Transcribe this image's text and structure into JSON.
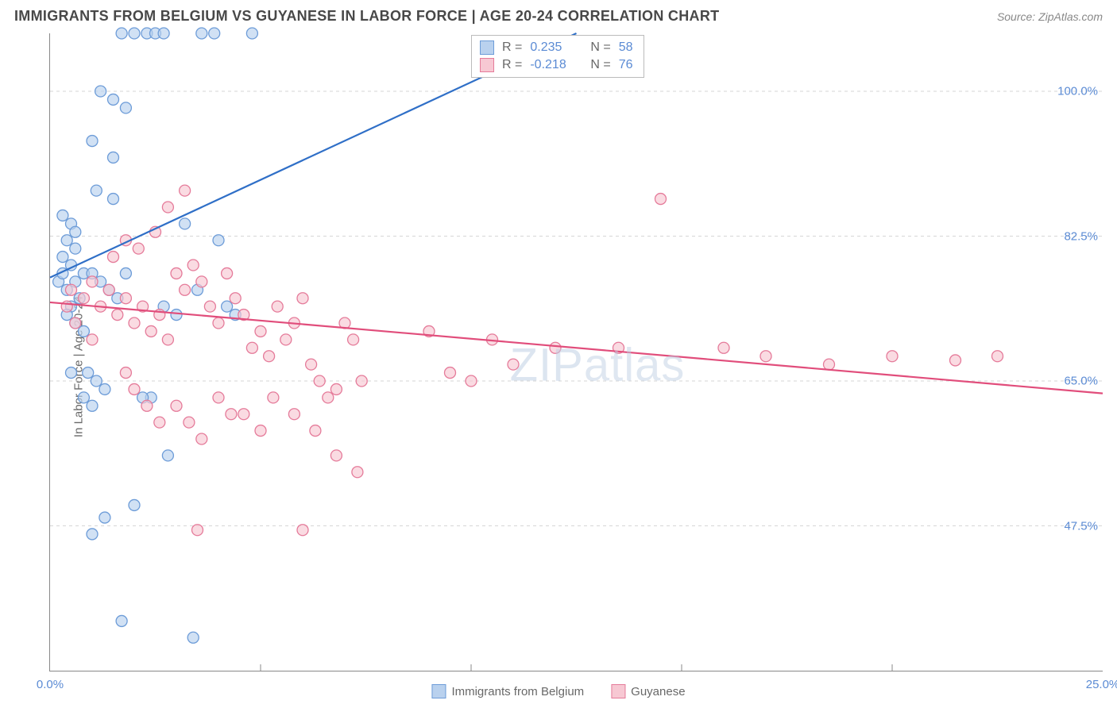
{
  "title": "IMMIGRANTS FROM BELGIUM VS GUYANESE IN LABOR FORCE | AGE 20-24 CORRELATION CHART",
  "source": "Source: ZipAtlas.com",
  "ylabel": "In Labor Force | Age 20-24",
  "watermark": "ZIPatlas",
  "chart": {
    "type": "scatter",
    "xlim": [
      0,
      25
    ],
    "ylim": [
      30,
      107
    ],
    "x_ticks": [
      0,
      25
    ],
    "x_tick_labels": [
      "0.0%",
      "25.0%"
    ],
    "x_minor_ticks": [
      5,
      10,
      15,
      20
    ],
    "y_ticks": [
      47.5,
      65.0,
      82.5,
      100.0
    ],
    "y_tick_labels": [
      "47.5%",
      "65.0%",
      "82.5%",
      "100.0%"
    ],
    "grid_color": "#d6d6d6",
    "axis_color": "#888888",
    "background": "#ffffff"
  },
  "series": [
    {
      "name": "Immigrants from Belgium",
      "color_fill": "#b9d1ee",
      "color_stroke": "#6d9cd8",
      "line_color": "#2f6fc7",
      "marker_radius": 7,
      "R": "0.235",
      "N": "58",
      "trend": {
        "x1": 0,
        "y1": 77.5,
        "x2": 12.5,
        "y2": 107
      },
      "points": [
        [
          0.2,
          77
        ],
        [
          0.3,
          78
        ],
        [
          0.4,
          76
        ],
        [
          0.5,
          79
        ],
        [
          0.5,
          74
        ],
        [
          0.6,
          77
        ],
        [
          0.7,
          75
        ],
        [
          0.8,
          78
        ],
        [
          0.3,
          85
        ],
        [
          0.5,
          84
        ],
        [
          0.6,
          83
        ],
        [
          0.4,
          73
        ],
        [
          0.6,
          72
        ],
        [
          0.8,
          71
        ],
        [
          1.0,
          78
        ],
        [
          1.2,
          77
        ],
        [
          1.4,
          76
        ],
        [
          1.6,
          75
        ],
        [
          1.8,
          78
        ],
        [
          0.9,
          66
        ],
        [
          1.1,
          65
        ],
        [
          1.3,
          64
        ],
        [
          1.0,
          46.5
        ],
        [
          1.3,
          48.5
        ],
        [
          2.4,
          63
        ],
        [
          2.8,
          56
        ],
        [
          3.0,
          73
        ],
        [
          3.2,
          84
        ],
        [
          3.4,
          34
        ],
        [
          1.7,
          107
        ],
        [
          2.0,
          107
        ],
        [
          2.3,
          107
        ],
        [
          2.5,
          107
        ],
        [
          2.7,
          107
        ],
        [
          3.6,
          107
        ],
        [
          3.9,
          107
        ],
        [
          4.8,
          107
        ],
        [
          1.1,
          88
        ],
        [
          1.5,
          87
        ],
        [
          1.2,
          100
        ],
        [
          1.5,
          99
        ],
        [
          1.8,
          98
        ],
        [
          1.0,
          94
        ],
        [
          1.5,
          92
        ],
        [
          1.7,
          36
        ],
        [
          2.0,
          50
        ],
        [
          2.2,
          63
        ],
        [
          2.7,
          74
        ],
        [
          3.5,
          76
        ],
        [
          4.0,
          82
        ],
        [
          4.2,
          74
        ],
        [
          4.4,
          73
        ],
        [
          0.8,
          63
        ],
        [
          1.0,
          62
        ],
        [
          0.5,
          66
        ],
        [
          0.3,
          80
        ],
        [
          0.4,
          82
        ],
        [
          0.6,
          81
        ]
      ]
    },
    {
      "name": "Guyanese",
      "color_fill": "#f7c8d3",
      "color_stroke": "#e57b9a",
      "line_color": "#e14d7b",
      "marker_radius": 7,
      "R": "-0.218",
      "N": "76",
      "trend": {
        "x1": 0,
        "y1": 74.5,
        "x2": 25,
        "y2": 63.5
      },
      "points": [
        [
          0.5,
          76
        ],
        [
          0.8,
          75
        ],
        [
          1.0,
          77
        ],
        [
          1.2,
          74
        ],
        [
          1.4,
          76
        ],
        [
          1.6,
          73
        ],
        [
          1.8,
          75
        ],
        [
          2.0,
          72
        ],
        [
          2.2,
          74
        ],
        [
          2.4,
          71
        ],
        [
          2.6,
          73
        ],
        [
          2.8,
          70
        ],
        [
          3.0,
          78
        ],
        [
          3.2,
          76
        ],
        [
          3.4,
          79
        ],
        [
          3.6,
          77
        ],
        [
          3.8,
          74
        ],
        [
          4.0,
          72
        ],
        [
          4.2,
          78
        ],
        [
          4.4,
          75
        ],
        [
          4.6,
          73
        ],
        [
          4.8,
          69
        ],
        [
          5.0,
          71
        ],
        [
          5.2,
          68
        ],
        [
          5.4,
          74
        ],
        [
          5.6,
          70
        ],
        [
          5.8,
          72
        ],
        [
          6.0,
          75
        ],
        [
          6.2,
          67
        ],
        [
          6.4,
          65
        ],
        [
          6.6,
          63
        ],
        [
          6.8,
          64
        ],
        [
          7.0,
          72
        ],
        [
          7.2,
          70
        ],
        [
          7.4,
          65
        ],
        [
          9.0,
          71
        ],
        [
          9.5,
          66
        ],
        [
          10.0,
          65
        ],
        [
          10.5,
          70
        ],
        [
          11.0,
          67
        ],
        [
          12.0,
          69
        ],
        [
          13.5,
          69
        ],
        [
          14.5,
          87
        ],
        [
          16.0,
          69
        ],
        [
          17.0,
          68
        ],
        [
          18.5,
          67
        ],
        [
          20.0,
          68
        ],
        [
          21.5,
          67.5
        ],
        [
          22.5,
          68
        ],
        [
          2.5,
          83
        ],
        [
          2.8,
          86
        ],
        [
          3.2,
          88
        ],
        [
          1.5,
          80
        ],
        [
          1.8,
          82
        ],
        [
          2.1,
          81
        ],
        [
          2.0,
          64
        ],
        [
          2.3,
          62
        ],
        [
          2.6,
          60
        ],
        [
          3.0,
          62
        ],
        [
          3.3,
          60
        ],
        [
          3.6,
          58
        ],
        [
          4.0,
          63
        ],
        [
          4.3,
          61
        ],
        [
          4.6,
          61
        ],
        [
          5.0,
          59
        ],
        [
          5.3,
          63
        ],
        [
          5.8,
          61
        ],
        [
          6.3,
          59
        ],
        [
          6.8,
          56
        ],
        [
          7.3,
          54
        ],
        [
          6.0,
          47
        ],
        [
          3.5,
          47
        ],
        [
          1.8,
          66
        ],
        [
          1.0,
          70
        ],
        [
          0.6,
          72
        ],
        [
          0.4,
          74
        ]
      ]
    }
  ],
  "bottom_legend": [
    {
      "label": "Immigrants from Belgium",
      "fill": "#b9d1ee",
      "stroke": "#6d9cd8"
    },
    {
      "label": "Guyanese",
      "fill": "#f7c8d3",
      "stroke": "#e57b9a"
    }
  ]
}
